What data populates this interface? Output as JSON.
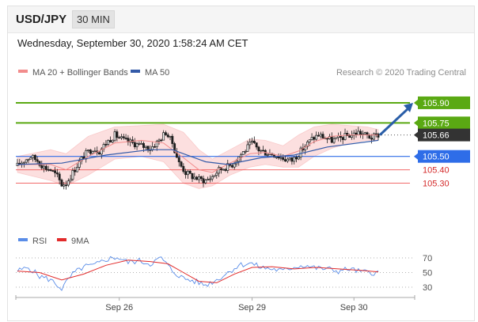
{
  "header": {
    "pair": "USD/JPY",
    "timeframe": "30 MIN",
    "timestamp": "Wednesday, September 30, 2020 1:58:24 AM CET"
  },
  "legend": {
    "ma20": "MA 20 + Bollinger Bands",
    "ma50": "MA 50",
    "rsi": "RSI",
    "rsi_ma": "9MA",
    "credit": "Research © 2020 Trading Central"
  },
  "colors": {
    "green": "#5aa913",
    "blue_level": "#2e6de8",
    "red_level": "#f05555",
    "current": "#333333",
    "arrow": "#2a5ea8",
    "ma50": "#335aa8",
    "bb_fill": "#fbd4d4",
    "ma20": "#f28c8c",
    "candle": "#1f1f1f",
    "rsi": "#5a8de8",
    "rsi_ma": "#e22b2b"
  },
  "chart_data": {
    "type": "candlestick",
    "instrument": "USD/JPY",
    "ylim": [
      105.15,
      106.0
    ],
    "xlabels": [
      "Sep 26",
      "Sep 29",
      "Sep 30"
    ],
    "levels": [
      {
        "label": "105.90",
        "value": 105.9,
        "kind": "resistance"
      },
      {
        "label": "105.75",
        "value": 105.75,
        "kind": "resistance"
      },
      {
        "label": "105.66",
        "value": 105.66,
        "kind": "current"
      },
      {
        "label": "105.50",
        "value": 105.5,
        "kind": "pivot"
      },
      {
        "label": "105.40",
        "value": 105.4,
        "kind": "support"
      },
      {
        "label": "105.30",
        "value": 105.3,
        "kind": "support"
      }
    ],
    "price_path": [
      [
        0,
        105.43
      ],
      [
        3,
        105.47
      ],
      [
        6,
        105.5
      ],
      [
        9,
        105.47
      ],
      [
        12,
        105.42
      ],
      [
        15,
        105.4
      ],
      [
        18,
        105.35
      ],
      [
        20,
        105.29
      ],
      [
        22,
        105.3
      ],
      [
        25,
        105.38
      ],
      [
        28,
        105.46
      ],
      [
        31,
        105.52
      ],
      [
        34,
        105.56
      ],
      [
        37,
        105.54
      ],
      [
        40,
        105.6
      ],
      [
        44,
        105.66
      ],
      [
        48,
        105.62
      ],
      [
        52,
        105.6
      ],
      [
        56,
        105.58
      ],
      [
        60,
        105.56
      ],
      [
        64,
        105.62
      ],
      [
        67,
        105.68
      ],
      [
        70,
        105.6
      ],
      [
        73,
        105.45
      ],
      [
        76,
        105.38
      ],
      [
        79,
        105.35
      ],
      [
        82,
        105.33
      ],
      [
        85,
        105.32
      ],
      [
        88,
        105.35
      ],
      [
        91,
        105.4
      ],
      [
        94,
        105.42
      ],
      [
        97,
        105.44
      ],
      [
        100,
        105.5
      ],
      [
        103,
        105.55
      ],
      [
        106,
        105.6
      ],
      [
        109,
        105.55
      ],
      [
        112,
        105.53
      ],
      [
        115,
        105.52
      ],
      [
        118,
        105.5
      ],
      [
        121,
        105.48
      ],
      [
        124,
        105.47
      ],
      [
        127,
        105.52
      ],
      [
        130,
        105.58
      ],
      [
        133,
        105.63
      ],
      [
        136,
        105.66
      ],
      [
        139,
        105.64
      ],
      [
        142,
        105.62
      ],
      [
        145,
        105.63
      ],
      [
        148,
        105.65
      ],
      [
        151,
        105.66
      ],
      [
        154,
        105.68
      ],
      [
        157,
        105.66
      ],
      [
        160,
        105.64
      ],
      [
        163,
        105.66
      ]
    ],
    "ma50_path": [
      [
        0,
        105.44
      ],
      [
        20,
        105.45
      ],
      [
        40,
        105.51
      ],
      [
        60,
        105.55
      ],
      [
        70,
        105.55
      ],
      [
        85,
        105.46
      ],
      [
        95,
        105.44
      ],
      [
        110,
        105.49
      ],
      [
        125,
        105.51
      ],
      [
        140,
        105.57
      ],
      [
        163,
        105.62
      ]
    ],
    "bb_path": [
      [
        0,
        105.5,
        105.38
      ],
      [
        15,
        105.55,
        105.32
      ],
      [
        22,
        105.52,
        105.28
      ],
      [
        32,
        105.65,
        105.36
      ],
      [
        44,
        105.72,
        105.48
      ],
      [
        56,
        105.73,
        105.5
      ],
      [
        66,
        105.74,
        105.46
      ],
      [
        75,
        105.68,
        105.3
      ],
      [
        82,
        105.55,
        105.26
      ],
      [
        88,
        105.48,
        105.28
      ],
      [
        96,
        105.55,
        105.36
      ],
      [
        105,
        105.63,
        105.42
      ],
      [
        112,
        105.62,
        105.44
      ],
      [
        120,
        105.58,
        105.42
      ],
      [
        127,
        105.66,
        105.42
      ],
      [
        134,
        105.72,
        105.5
      ],
      [
        142,
        105.74,
        105.56
      ],
      [
        150,
        105.73,
        105.6
      ],
      [
        158,
        105.72,
        105.62
      ],
      [
        163,
        105.7,
        105.62
      ]
    ],
    "ma20_path": [
      [
        0,
        105.44
      ],
      [
        15,
        105.44
      ],
      [
        22,
        105.4
      ],
      [
        32,
        105.5
      ],
      [
        44,
        105.6
      ],
      [
        56,
        105.62
      ],
      [
        66,
        105.6
      ],
      [
        75,
        105.49
      ],
      [
        82,
        105.4
      ],
      [
        88,
        105.38
      ],
      [
        96,
        105.45
      ],
      [
        105,
        105.52
      ],
      [
        112,
        105.53
      ],
      [
        120,
        105.5
      ],
      [
        127,
        105.54
      ],
      [
        134,
        105.61
      ],
      [
        142,
        105.65
      ],
      [
        150,
        105.66
      ],
      [
        163,
        105.66
      ]
    ],
    "arrow": {
      "from": 105.66,
      "to": 105.9
    },
    "rsi": {
      "levels": [
        "70",
        "50",
        "30"
      ],
      "ylim": [
        20,
        80
      ],
      "rsi_path": [
        [
          0,
          52
        ],
        [
          5,
          57
        ],
        [
          10,
          45
        ],
        [
          15,
          40
        ],
        [
          20,
          28
        ],
        [
          25,
          48
        ],
        [
          30,
          58
        ],
        [
          35,
          60
        ],
        [
          40,
          68
        ],
        [
          45,
          71
        ],
        [
          50,
          64
        ],
        [
          55,
          66
        ],
        [
          60,
          62
        ],
        [
          65,
          70
        ],
        [
          70,
          52
        ],
        [
          75,
          42
        ],
        [
          80,
          38
        ],
        [
          85,
          33
        ],
        [
          90,
          40
        ],
        [
          95,
          50
        ],
        [
          100,
          60
        ],
        [
          105,
          63
        ],
        [
          110,
          57
        ],
        [
          115,
          55
        ],
        [
          120,
          52
        ],
        [
          125,
          58
        ],
        [
          130,
          60
        ],
        [
          135,
          56
        ],
        [
          140,
          55
        ],
        [
          145,
          52
        ],
        [
          150,
          55
        ],
        [
          155,
          51
        ],
        [
          160,
          50
        ],
        [
          163,
          50
        ]
      ],
      "ma9_path": [
        [
          0,
          52
        ],
        [
          10,
          50
        ],
        [
          20,
          40
        ],
        [
          30,
          48
        ],
        [
          40,
          60
        ],
        [
          50,
          67
        ],
        [
          60,
          65
        ],
        [
          68,
          62
        ],
        [
          75,
          50
        ],
        [
          82,
          38
        ],
        [
          90,
          36
        ],
        [
          98,
          48
        ],
        [
          106,
          57
        ],
        [
          115,
          58
        ],
        [
          125,
          55
        ],
        [
          135,
          57
        ],
        [
          145,
          55
        ],
        [
          155,
          53
        ],
        [
          163,
          51
        ]
      ]
    }
  }
}
